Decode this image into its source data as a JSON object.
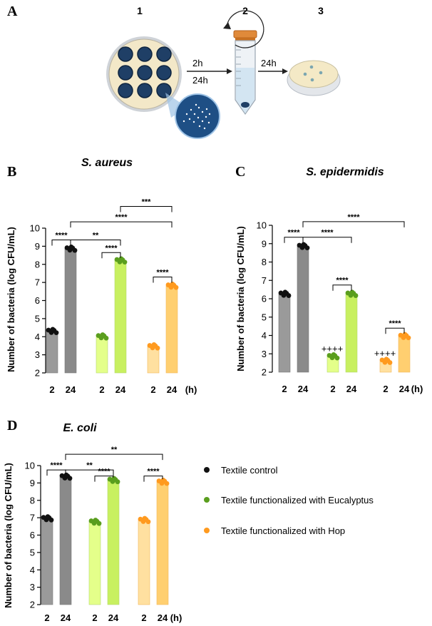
{
  "panel_a": {
    "label": "A",
    "steps": [
      "1",
      "2",
      "3"
    ],
    "arrow1_labels": [
      "2h",
      "24h"
    ],
    "arrow2_label": "24h"
  },
  "legend": {
    "items": [
      {
        "label": "Textile control",
        "color": "#111111"
      },
      {
        "label": "Textile functionalized with Eucalyptus",
        "color": "#5a9e1e"
      },
      {
        "label": "Textile functionalized with Hop",
        "color": "#ff9a1f"
      }
    ]
  },
  "colors": {
    "control": "#9a9a9a",
    "control_dark": "#8a8a8a",
    "euc": "#e4ff8a",
    "euc_dark": "#c8f060",
    "euc_dot": "#5a9e1e",
    "hop": "#ffe0a0",
    "hop_dark": "#ffcf70",
    "hop_dot": "#ff9a1f",
    "ctrl_dot": "#111111"
  },
  "chart_data": [
    {
      "panel": "B",
      "type": "bar",
      "title": "S. aureus",
      "ylabel": "Number of bacteria (log CFU/mL)",
      "xunit": "(h)",
      "ylim": [
        2,
        10
      ],
      "yticks": [
        2,
        3,
        4,
        5,
        6,
        7,
        8,
        9,
        10
      ],
      "categories": [
        "2",
        "24",
        "2",
        "24",
        "2",
        "24"
      ],
      "groups": [
        "control",
        "control",
        "euc",
        "euc",
        "hop",
        "hop"
      ],
      "values": [
        4.3,
        8.85,
        4.0,
        8.2,
        3.45,
        6.8
      ],
      "annotations": [
        {
          "from": 0,
          "to": 1,
          "level": 9.35,
          "label": "****"
        },
        {
          "from": 1,
          "to": 3,
          "level": 9.35,
          "label": "**"
        },
        {
          "from": 2,
          "to": 3,
          "level": 8.65,
          "label": "****"
        },
        {
          "from": 4,
          "to": 5,
          "level": 7.3,
          "label": "****"
        },
        {
          "from": 1,
          "to": 5,
          "level": 10.35,
          "label": "****"
        },
        {
          "from": 3,
          "to": 5,
          "level": 11.2,
          "label": "***"
        }
      ],
      "cross_labels": []
    },
    {
      "panel": "C",
      "type": "bar",
      "title": "S. epidermidis",
      "ylabel": "Number of bacteria (log CFU/mL)",
      "xunit": "(h)",
      "ylim": [
        2,
        10
      ],
      "yticks": [
        2,
        3,
        4,
        5,
        6,
        7,
        8,
        9,
        10
      ],
      "categories": [
        "2",
        "24",
        "2",
        "24",
        "2",
        "24"
      ],
      "groups": [
        "control",
        "control",
        "euc",
        "euc",
        "hop",
        "hop"
      ],
      "values": [
        6.25,
        8.85,
        2.85,
        6.25,
        2.6,
        3.95
      ],
      "annotations": [
        {
          "from": 0,
          "to": 1,
          "level": 9.35,
          "label": "****"
        },
        {
          "from": 1,
          "to": 3,
          "level": 9.35,
          "label": "****"
        },
        {
          "from": 2,
          "to": 3,
          "level": 6.75,
          "label": "****"
        },
        {
          "from": 4,
          "to": 5,
          "level": 4.4,
          "label": "****"
        },
        {
          "from": 1,
          "to": 5,
          "level": 10.2,
          "label": "****"
        }
      ],
      "cross_labels": [
        {
          "index": 2,
          "value": 3.1,
          "label": "++++"
        },
        {
          "index": 4,
          "value": 2.85,
          "label": "++++"
        }
      ]
    },
    {
      "panel": "D",
      "type": "bar",
      "title": "E. coli",
      "ylabel": "Number of bacteria (log CFU/mL)",
      "xunit": "(h)",
      "ylim": [
        2,
        10
      ],
      "yticks": [
        2,
        3,
        4,
        5,
        6,
        7,
        8,
        9,
        10
      ],
      "categories": [
        "2",
        "24",
        "2",
        "24",
        "2",
        "24"
      ],
      "groups": [
        "control",
        "control",
        "euc",
        "euc",
        "hop",
        "hop"
      ],
      "values": [
        6.95,
        9.35,
        6.75,
        9.15,
        6.85,
        9.05
      ],
      "annotations": [
        {
          "from": 0,
          "to": 1,
          "level": 9.75,
          "label": "****"
        },
        {
          "from": 1,
          "to": 3,
          "level": 9.75,
          "label": "**"
        },
        {
          "from": 2,
          "to": 3,
          "level": 9.4,
          "label": "****"
        },
        {
          "from": 4,
          "to": 5,
          "level": 9.4,
          "label": "****"
        },
        {
          "from": 1,
          "to": 5,
          "level": 10.65,
          "label": "**"
        }
      ],
      "cross_labels": []
    }
  ]
}
